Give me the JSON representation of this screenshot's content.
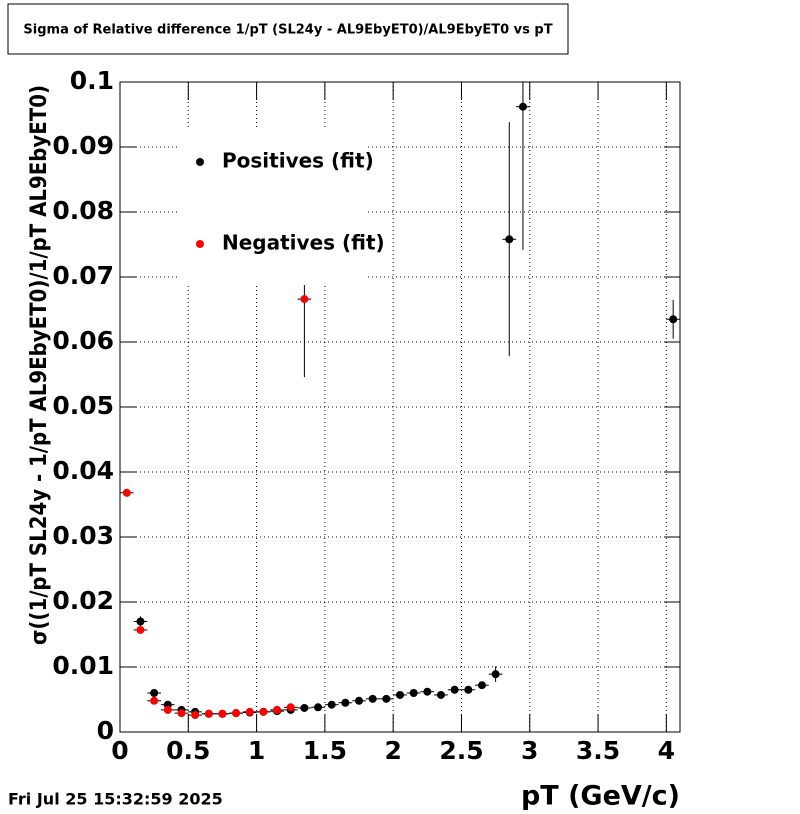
{
  "chart_data": {
    "type": "scatter",
    "title": "Sigma of Relative difference 1/pT (SL24y - AL9EbyET0)/AL9EbyET0 vs pT",
    "xlabel": "pT (GeV/c)",
    "ylabel": "σ((1/pT SL24y - 1/pT AL9EbyET0)/1/pT AL9EbyET0)",
    "timestamp": "Fri Jul 25 15:32:59 2025",
    "xlim": [
      0,
      4.1
    ],
    "ylim": [
      0,
      0.1
    ],
    "xticks": [
      0,
      0.5,
      1,
      1.5,
      2,
      2.5,
      3,
      3.5,
      4
    ],
    "yticks": [
      0,
      0.01,
      0.02,
      0.03,
      0.04,
      0.05,
      0.06,
      0.07,
      0.08,
      0.09,
      0.1
    ],
    "grid": true,
    "legend": "top-left",
    "xerr": 0.05,
    "series": [
      {
        "name": "Positives (fit)",
        "color": "#000000",
        "x": [
          0.15,
          0.25,
          0.35,
          0.45,
          0.55,
          0.65,
          0.75,
          0.85,
          0.95,
          1.05,
          1.15,
          1.25,
          1.35,
          1.45,
          1.55,
          1.65,
          1.75,
          1.85,
          1.95,
          2.05,
          2.15,
          2.25,
          2.35,
          2.45,
          2.55,
          2.65,
          2.75,
          2.85,
          2.95,
          4.05
        ],
        "values": [
          0.017,
          0.006,
          0.0042,
          0.0034,
          0.0031,
          0.0028,
          0.0028,
          0.0029,
          0.003,
          0.0031,
          0.0032,
          0.0034,
          0.0037,
          0.0038,
          0.0042,
          0.0045,
          0.0048,
          0.0051,
          0.0051,
          0.0057,
          0.006,
          0.0062,
          0.0057,
          0.0065,
          0.0065,
          0.0072,
          0.0089,
          0.0758,
          0.0962,
          0.0635
        ],
        "errors": [
          0.0008,
          0.0004,
          0.0003,
          0.0003,
          0.0003,
          0.0003,
          0.0003,
          0.0003,
          0.0003,
          0.0003,
          0.0003,
          0.0003,
          0.0003,
          0.0003,
          0.0003,
          0.0003,
          0.0003,
          0.0003,
          0.0003,
          0.0003,
          0.0003,
          0.0003,
          0.0003,
          0.0003,
          0.0003,
          0.0004,
          0.0012,
          0.018,
          0.022,
          0.003
        ]
      },
      {
        "name": "Negatives (fit)",
        "color": "#ff0000",
        "x": [
          0.05,
          0.15,
          0.25,
          0.35,
          0.45,
          0.55,
          0.65,
          0.75,
          0.85,
          0.95,
          1.05,
          1.15,
          1.25,
          1.35
        ],
        "values": [
          0.0368,
          0.0157,
          0.0048,
          0.0034,
          0.0029,
          0.0026,
          0.0028,
          0.0028,
          0.0029,
          0.0031,
          0.0031,
          0.0034,
          0.0038,
          0.0666
        ],
        "errors": [
          0.0006,
          0.0004,
          0.0003,
          0.0003,
          0.0003,
          0.0003,
          0.0003,
          0.0003,
          0.0003,
          0.0003,
          0.0003,
          0.0003,
          0.0004,
          0.012
        ]
      }
    ]
  }
}
